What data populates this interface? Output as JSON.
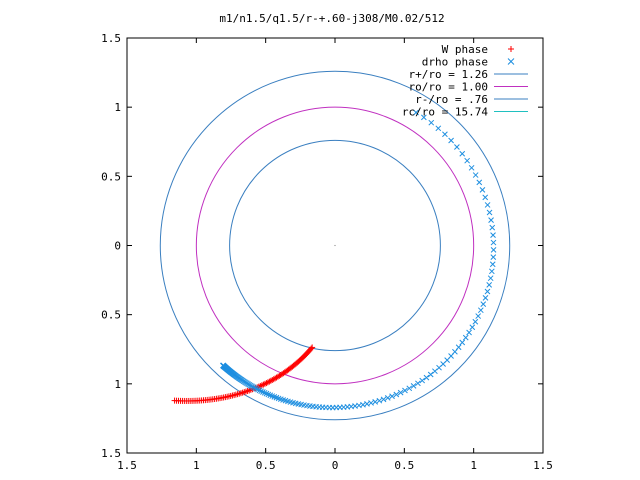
{
  "chart_data": {
    "type": "scatter",
    "title": "m1/n1.5/q1.5/r-+.60-j308/M0.02/512",
    "xlim": [
      -1.5,
      1.5
    ],
    "ylim": [
      -1.5,
      1.5
    ],
    "x_ticks": [
      {
        "value": -1.5,
        "label": "1.5"
      },
      {
        "value": -1.0,
        "label": "1"
      },
      {
        "value": -0.5,
        "label": "0.5"
      },
      {
        "value": 0.0,
        "label": "0"
      },
      {
        "value": 0.5,
        "label": "0.5"
      },
      {
        "value": 1.0,
        "label": "1"
      },
      {
        "value": 1.5,
        "label": "1.5"
      }
    ],
    "y_ticks": [
      {
        "value": 1.5,
        "label": "1.5"
      },
      {
        "value": 1.0,
        "label": "1"
      },
      {
        "value": 0.5,
        "label": "0.5"
      },
      {
        "value": 0.0,
        "label": "0"
      },
      {
        "value": -0.5,
        "label": "0.5"
      },
      {
        "value": -1.0,
        "label": "1"
      },
      {
        "value": -1.5,
        "label": "1.5"
      }
    ],
    "grid": false,
    "legend_position": "top-right",
    "legend": [
      {
        "label": "W phase",
        "marker": "plus",
        "color": "#ff0000"
      },
      {
        "label": "drho phase",
        "marker": "cross",
        "color": "#1f8fe0"
      },
      {
        "label": "r+/ro = 1.26",
        "marker": "line",
        "color": "#3a7fc0"
      },
      {
        "label": "ro/ro = 1.00",
        "marker": "line",
        "color": "#c030c0"
      },
      {
        "label": "r-/ro = .76",
        "marker": "line",
        "color": "#3a7fc0"
      },
      {
        "label": "rc/ro = 15.74",
        "marker": "line",
        "color": "#20c0c0"
      }
    ],
    "circles": [
      {
        "radius": 1.26,
        "color": "#3a7fc0"
      },
      {
        "radius": 1.0,
        "color": "#c030c0"
      },
      {
        "radius": 0.76,
        "color": "#3a7fc0"
      }
    ],
    "series": [
      {
        "name": "W phase",
        "marker": "plus",
        "color": "#ff0000",
        "start_angle_deg": -135.9,
        "end_angle_deg": -102.6,
        "r_start": 1.611,
        "r_end": 0.755,
        "count": 90
      },
      {
        "name": "drho phase",
        "marker": "cross",
        "color": "#1f8fe0",
        "start_angle_deg": 58.7,
        "end_angle_deg": -132.9,
        "r_start": 1.125,
        "r_end": 1.185,
        "count": 170,
        "density_power": 3
      }
    ],
    "origin_marker": true
  }
}
